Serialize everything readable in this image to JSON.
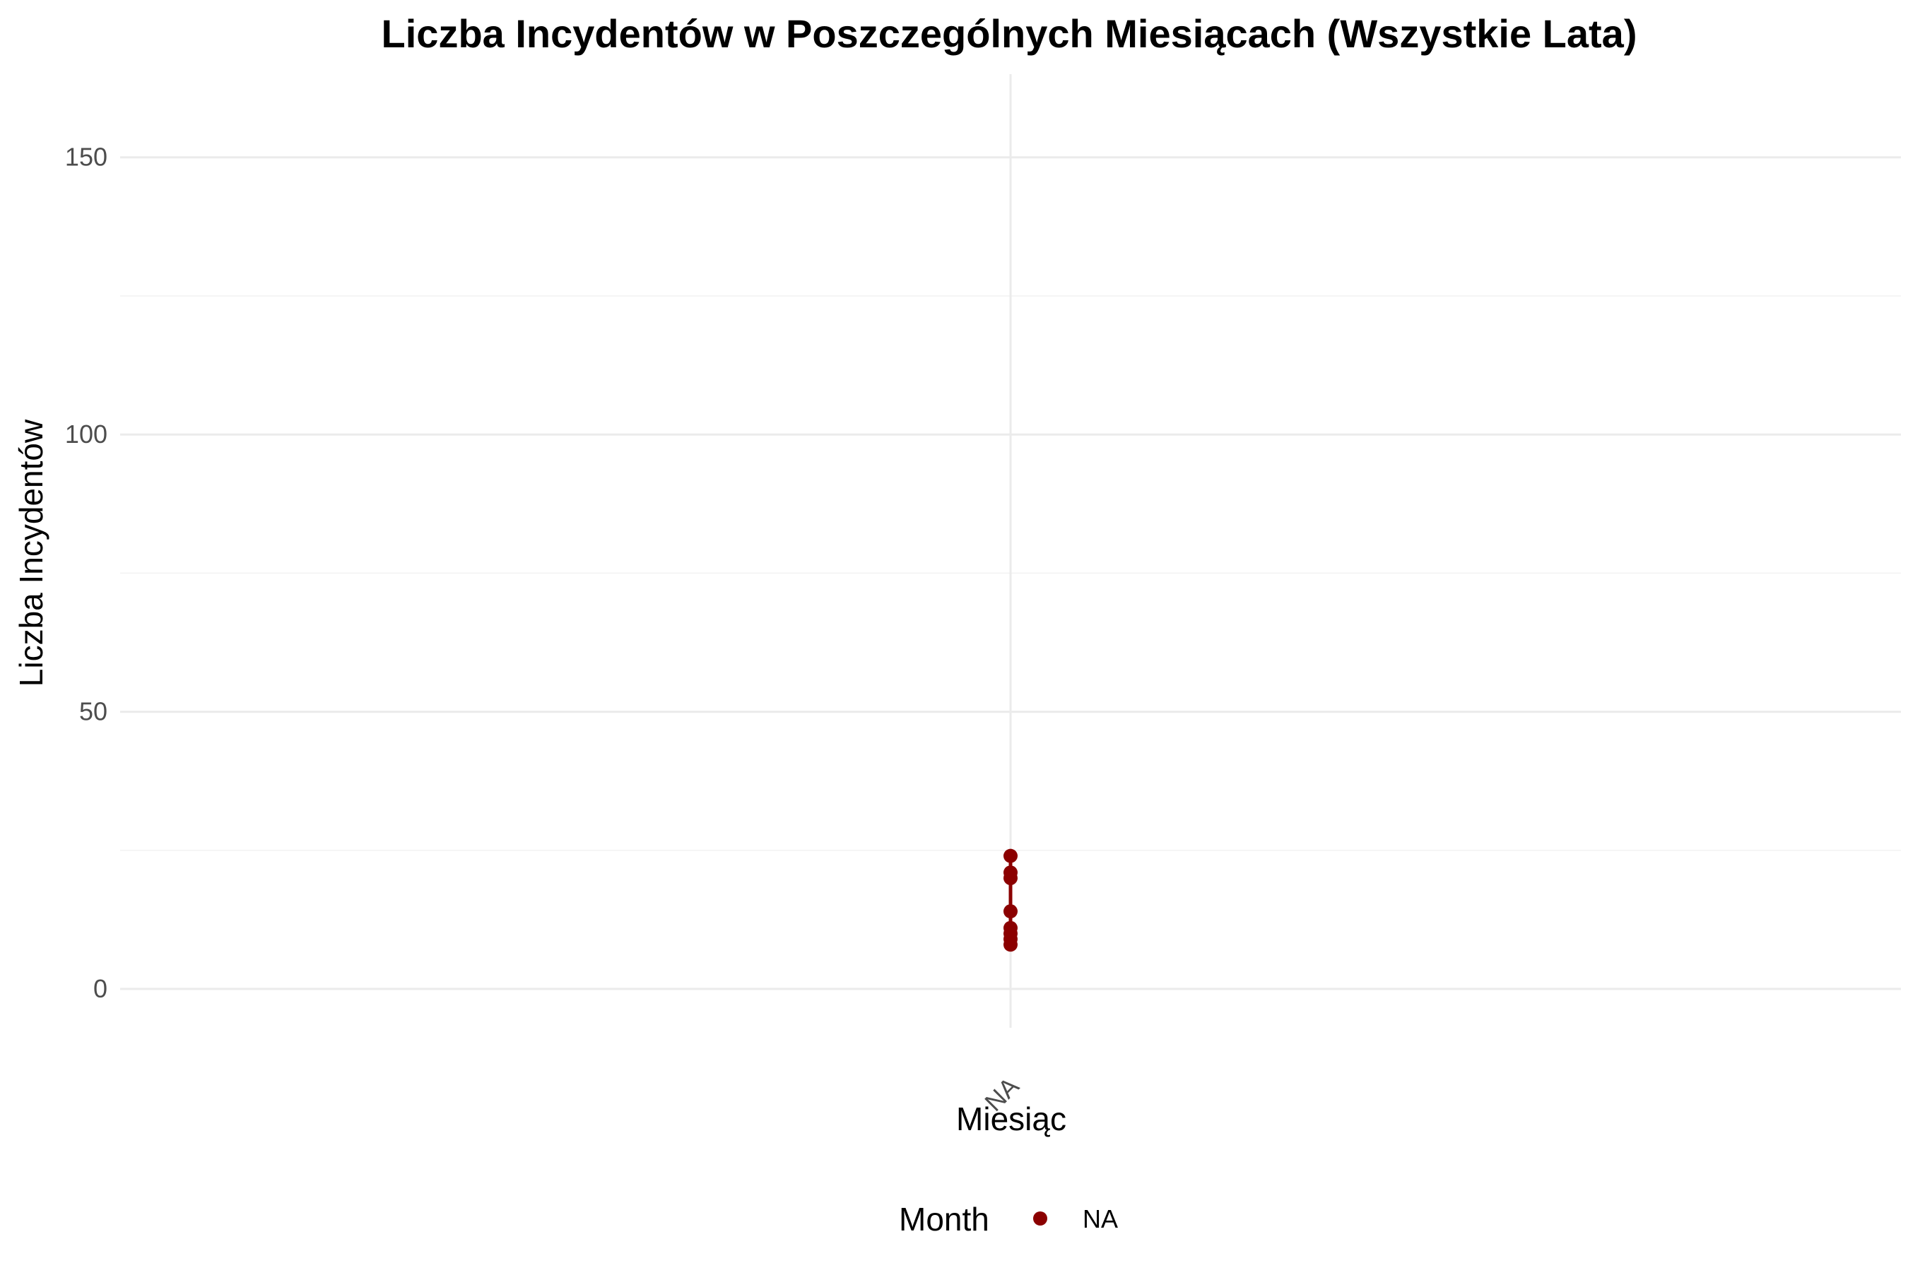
{
  "chart_data": {
    "type": "line",
    "title": "Liczba Incydentów w Poszczególnych Miesiącach (Wszystkie Lata)",
    "xlabel": "Miesiąc",
    "ylabel": "Liczba Incydentów",
    "categories": [
      "NA"
    ],
    "ylim": [
      -7,
      165
    ],
    "y_ticks": [
      0,
      50,
      100,
      150
    ],
    "grid": true,
    "legend": {
      "title": "Month",
      "position": "bottom",
      "entries": [
        {
          "label": "NA",
          "color": "#8b0000"
        }
      ]
    },
    "series": [
      {
        "name": "NA",
        "color": "#8b0000",
        "points": [
          {
            "x": "NA",
            "y": 24
          },
          {
            "x": "NA",
            "y": 21
          },
          {
            "x": "NA",
            "y": 20
          },
          {
            "x": "NA",
            "y": 14
          },
          {
            "x": "NA",
            "y": 11
          },
          {
            "x": "NA",
            "y": 10
          },
          {
            "x": "NA",
            "y": 9
          },
          {
            "x": "NA",
            "y": 8
          }
        ]
      }
    ]
  }
}
